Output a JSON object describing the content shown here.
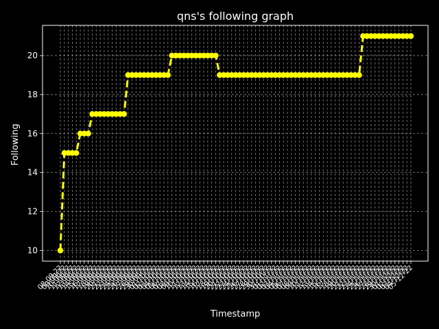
{
  "chart_data": {
    "type": "line",
    "title": "qns's following graph",
    "xlabel": "Timestamp",
    "ylabel": "Following",
    "ylim": [
      9.45,
      21.55
    ],
    "yticks": [
      10,
      12,
      14,
      16,
      18,
      20
    ],
    "x": [
      "08-09-22",
      "09-09-22",
      "10-09-22",
      "11-09-22",
      "12-09-22",
      "13-09-22",
      "14-09-22",
      "15-09-22",
      "16-09-22",
      "17-09-22",
      "18-09-22",
      "19-09-22",
      "20-09-22",
      "21-09-22",
      "22-09-22",
      "23-09-22",
      "24-09-22",
      "25-09-22",
      "26-09-22",
      "27-09-22",
      "28-09-22",
      "29-09-22",
      "30-09-22",
      "01-10-22",
      "02-10-22",
      "03-10-22",
      "04-10-22",
      "05-10-22",
      "06-10-22",
      "07-10-22",
      "08-10-22",
      "09-10-22",
      "10-10-22",
      "11-10-22",
      "12-10-22",
      "13-10-22",
      "14-10-22",
      "15-10-22",
      "16-10-22",
      "17-10-22",
      "18-10-22",
      "19-10-22",
      "20-10-22",
      "21-10-22",
      "22-10-22",
      "23-10-22",
      "24-10-22",
      "25-10-22",
      "26-10-22",
      "27-10-22",
      "28-10-22",
      "29-10-22",
      "30-10-22",
      "31-10-22",
      "01-11-22",
      "02-11-22",
      "03-11-22",
      "04-11-22",
      "05-11-22",
      "06-11-22",
      "07-11-22",
      "08-11-22",
      "09-11-22",
      "10-11-22",
      "11-11-22",
      "12-11-22",
      "13-11-22",
      "14-11-22",
      "15-11-22",
      "16-11-22",
      "17-11-22",
      "18-11-22",
      "19-11-22",
      "20-11-22",
      "21-11-22",
      "22-11-22",
      "23-11-22",
      "24-11-22",
      "25-11-22",
      "26-11-22",
      "27-11-22",
      "28-11-22",
      "29-11-22",
      "30-11-22",
      "01-12-22",
      "02-12-22",
      "03-12-22",
      "04-12-22",
      "05-12-22"
    ],
    "series": [
      {
        "values": [
          10,
          15,
          15,
          15,
          15,
          16,
          16,
          16,
          17,
          17,
          17,
          17,
          17,
          17,
          17,
          17,
          17,
          19,
          19,
          19,
          19,
          19,
          19,
          19,
          19,
          19,
          19,
          19,
          20,
          20,
          20,
          20,
          20,
          20,
          20,
          20,
          20,
          20,
          20,
          20,
          19,
          19,
          19,
          19,
          19,
          19,
          19,
          19,
          19,
          19,
          19,
          19,
          19,
          19,
          19,
          19,
          19,
          19,
          19,
          19,
          19,
          19,
          19,
          19,
          19,
          19,
          19,
          19,
          19,
          19,
          19,
          19,
          19,
          19,
          19,
          19,
          21,
          21,
          21,
          21,
          21,
          21,
          21,
          21,
          21,
          21,
          21,
          21,
          21
        ]
      }
    ],
    "grid": true,
    "style": {
      "background": "#000000",
      "line_color": "#ffff00",
      "line_style": "dashed",
      "marker": "circle",
      "axis_color": "#ffffff",
      "grid_color": "#8c8c8c"
    }
  }
}
